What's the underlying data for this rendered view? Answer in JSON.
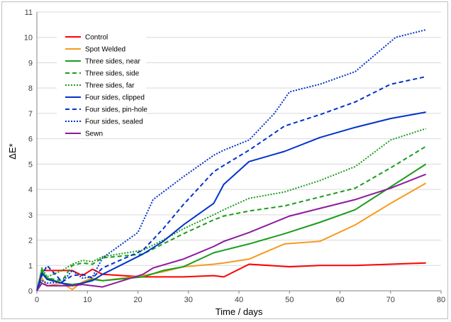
{
  "chart_data": {
    "type": "line",
    "title": "",
    "xlabel": "Time / days",
    "ylabel": "ΔE*",
    "xlim": [
      0,
      80
    ],
    "ylim": [
      0,
      11
    ],
    "xticks": [
      0,
      10,
      20,
      30,
      40,
      50,
      60,
      70,
      80
    ],
    "yticks": [
      0,
      1,
      2,
      3,
      4,
      5,
      6,
      7,
      8,
      9,
      10,
      11
    ],
    "grid": "horizontal",
    "legend_position": "top-left",
    "series": [
      {
        "name": "Control",
        "color": "#ff0000",
        "dash": "solid",
        "x": [
          0,
          1,
          2,
          5,
          7,
          9,
          11,
          13,
          21,
          25,
          29,
          35,
          37,
          42,
          50,
          56,
          63,
          70,
          77
        ],
        "y": [
          0,
          0.8,
          0.8,
          0.8,
          0.8,
          0.6,
          0.85,
          0.65,
          0.55,
          0.55,
          0.55,
          0.6,
          0.55,
          1.05,
          0.95,
          1.0,
          1.0,
          1.05,
          1.1
        ]
      },
      {
        "name": "Spot Welded",
        "color": "#f79a1e",
        "dash": "solid",
        "x": [
          0,
          1,
          2,
          5,
          7,
          9,
          11,
          13,
          21,
          25,
          29,
          35,
          37,
          42,
          49,
          56,
          63,
          70,
          77
        ],
        "y": [
          0,
          0.5,
          0.2,
          0.3,
          0.05,
          0.35,
          0.5,
          0.4,
          0.6,
          0.75,
          0.95,
          1.05,
          1.1,
          1.25,
          1.85,
          1.95,
          2.6,
          3.45,
          4.25
        ]
      },
      {
        "name": "Three sides, near",
        "color": "#1a9c1a",
        "dash": "solid",
        "x": [
          0,
          1,
          2,
          5,
          7,
          9,
          11,
          13,
          21,
          25,
          29,
          35,
          37,
          42,
          49,
          56,
          63,
          70,
          77
        ],
        "y": [
          0,
          0.75,
          0.5,
          0.3,
          0.25,
          0.3,
          0.45,
          0.4,
          0.55,
          0.8,
          0.95,
          1.5,
          1.6,
          1.85,
          2.25,
          2.7,
          3.2,
          4.1,
          5.0
        ]
      },
      {
        "name": "Three sides, side",
        "color": "#1a9c1a",
        "dash": "6,4",
        "x": [
          0,
          1,
          2,
          5,
          7,
          9,
          11,
          13,
          21,
          25,
          29,
          35,
          37,
          42,
          49,
          56,
          63,
          70,
          77
        ],
        "y": [
          0,
          0.85,
          0.5,
          0.4,
          1.0,
          1.1,
          1.05,
          1.3,
          1.45,
          1.85,
          2.25,
          2.8,
          2.95,
          3.15,
          3.35,
          3.7,
          4.05,
          4.85,
          5.7
        ]
      },
      {
        "name": "Three sides, far",
        "color": "#1a9c1a",
        "dash": "2,2",
        "x": [
          0,
          1,
          2,
          5,
          7,
          9,
          11,
          13,
          21,
          25,
          29,
          35,
          37,
          42,
          49,
          56,
          63,
          70,
          77
        ],
        "y": [
          0,
          0.9,
          0.55,
          0.8,
          1.05,
          1.2,
          1.15,
          1.35,
          1.6,
          2.0,
          2.45,
          3.0,
          3.2,
          3.65,
          3.9,
          4.35,
          4.9,
          5.95,
          6.4
        ]
      },
      {
        "name": "Four sides, clipped",
        "color": "#0033cc",
        "dash": "solid",
        "x": [
          0,
          1,
          2,
          5,
          7,
          9,
          11,
          13,
          21,
          25,
          29,
          35,
          37,
          42,
          49,
          56,
          63,
          70,
          77
        ],
        "y": [
          0,
          0.7,
          0.45,
          0.3,
          0.2,
          0.3,
          0.4,
          0.65,
          1.45,
          1.95,
          2.6,
          3.45,
          4.2,
          5.1,
          5.5,
          6.05,
          6.45,
          6.8,
          7.05
        ]
      },
      {
        "name": "Four sides, pin-hole",
        "color": "#0033cc",
        "dash": "6,4",
        "x": [
          0,
          1,
          2,
          5,
          7,
          9,
          11,
          13,
          21,
          25,
          29,
          35,
          37,
          42,
          49,
          56,
          63,
          70,
          77
        ],
        "y": [
          0,
          0.6,
          1.0,
          0.35,
          0.6,
          0.65,
          0.5,
          0.9,
          1.6,
          2.45,
          3.4,
          4.7,
          4.95,
          5.55,
          6.5,
          6.95,
          7.45,
          8.15,
          8.45
        ]
      },
      {
        "name": "Four sides, sealed",
        "color": "#0033cc",
        "dash": "2,2",
        "x": [
          0,
          1,
          2,
          5,
          7,
          9,
          11,
          13,
          20,
          23,
          29,
          35,
          37,
          42,
          47,
          50,
          56,
          63,
          71,
          77
        ],
        "y": [
          0,
          0.4,
          0.3,
          0.35,
          0.8,
          0.5,
          0.55,
          1.3,
          2.3,
          3.6,
          4.5,
          5.35,
          5.55,
          5.95,
          7.0,
          7.85,
          8.15,
          8.65,
          10.0,
          10.3
        ]
      },
      {
        "name": "Sewn",
        "color": "#8e1a9e",
        "dash": "solid",
        "x": [
          0,
          1,
          2,
          5,
          7,
          9,
          11,
          13,
          21,
          23,
          29,
          35,
          37,
          42,
          50,
          56,
          63,
          70,
          77
        ],
        "y": [
          0,
          0.3,
          0.2,
          0.2,
          0.2,
          0.25,
          0.2,
          0.15,
          0.65,
          0.9,
          1.25,
          1.75,
          1.95,
          2.3,
          2.95,
          3.25,
          3.6,
          4.05,
          4.6
        ]
      }
    ]
  }
}
